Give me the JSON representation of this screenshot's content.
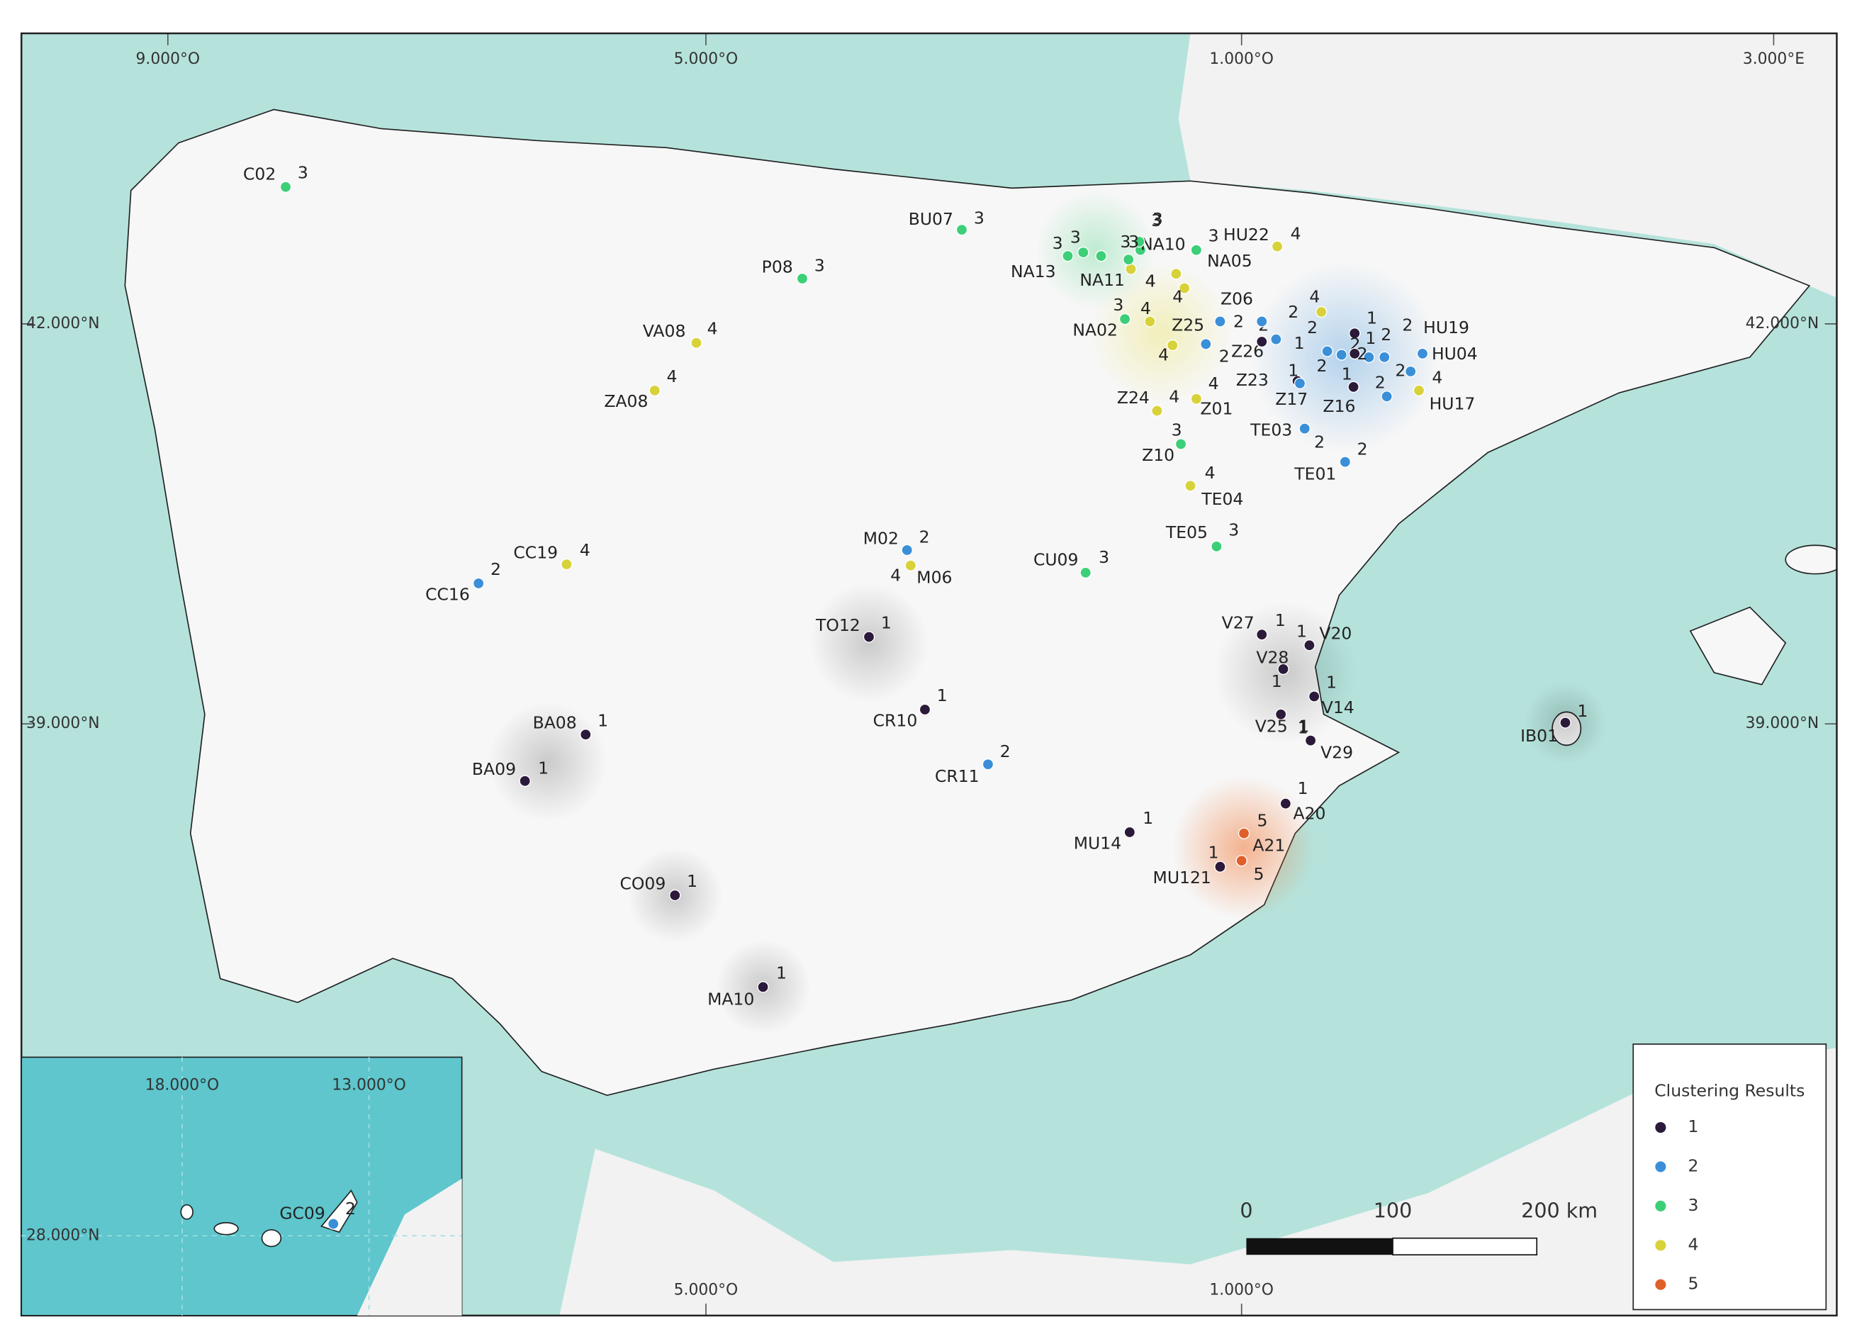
{
  "map": {
    "lon_labels_top": [
      "9.000°O",
      "5.000°O",
      "1.000°O",
      "3.000°E"
    ],
    "lat_labels": [
      "42.000°N",
      "39.000°N"
    ],
    "inset_lon_labels": [
      "18.000°O",
      "13.000°O"
    ],
    "inset_lat_label": "28.000°N",
    "lon_labels_bottom": [
      "5.000°O",
      "1.000°O"
    ],
    "legend": {
      "title": "Clustering Results",
      "items": [
        {
          "label": "1",
          "color": "#2b1a3a"
        },
        {
          "label": "2",
          "color": "#3a8fd8"
        },
        {
          "label": "3",
          "color": "#3ccf78"
        },
        {
          "label": "4",
          "color": "#d8d23a"
        },
        {
          "label": "5",
          "color": "#e0602a"
        }
      ]
    },
    "scale_bar": [
      "0",
      "100",
      "200 km"
    ],
    "points": [
      {
        "label": "C02",
        "cluster": 3
      },
      {
        "label": "BU07",
        "cluster": 3
      },
      {
        "label": "P08",
        "cluster": 3
      },
      {
        "label": "VA08",
        "cluster": 4
      },
      {
        "label": "ZA08",
        "cluster": 4
      },
      {
        "label": "NA13",
        "cluster": 3
      },
      {
        "label": "NA11",
        "cluster": 4
      },
      {
        "label": "NA10",
        "cluster": 3
      },
      {
        "label": "NA05",
        "cluster": 3
      },
      {
        "label": "HU22",
        "cluster": 4
      },
      {
        "label": "NA02",
        "cluster": 3
      },
      {
        "label": "Z06",
        "cluster": 2
      },
      {
        "label": "Z25",
        "cluster": 2
      },
      {
        "label": "Z26",
        "cluster": 2
      },
      {
        "label": "HU19",
        "cluster": 2
      },
      {
        "label": "HU04",
        "cluster": 2
      },
      {
        "label": "Z23",
        "cluster": 1
      },
      {
        "label": "Z17",
        "cluster": 2
      },
      {
        "label": "Z16",
        "cluster": 1
      },
      {
        "label": "HU17",
        "cluster": 4
      },
      {
        "label": "Z24",
        "cluster": 4
      },
      {
        "label": "Z01",
        "cluster": 4
      },
      {
        "label": "TE03",
        "cluster": 2
      },
      {
        "label": "Z10",
        "cluster": 3
      },
      {
        "label": "TE01",
        "cluster": 2
      },
      {
        "label": "TE04",
        "cluster": 4
      },
      {
        "label": "TE05",
        "cluster": 3
      },
      {
        "label": "CU09",
        "cluster": 3
      },
      {
        "label": "M02",
        "cluster": 2
      },
      {
        "label": "M06",
        "cluster": 4
      },
      {
        "label": "CC19",
        "cluster": 4
      },
      {
        "label": "CC16",
        "cluster": 2
      },
      {
        "label": "TO12",
        "cluster": 1
      },
      {
        "label": "V27",
        "cluster": 1
      },
      {
        "label": "V20",
        "cluster": 1
      },
      {
        "label": "V28",
        "cluster": 1
      },
      {
        "label": "V14",
        "cluster": 1
      },
      {
        "label": "V25",
        "cluster": 1
      },
      {
        "label": "V29",
        "cluster": 1
      },
      {
        "label": "CR10",
        "cluster": 1
      },
      {
        "label": "BA08",
        "cluster": 1
      },
      {
        "label": "BA09",
        "cluster": 1
      },
      {
        "label": "CR11",
        "cluster": 2
      },
      {
        "label": "IB01",
        "cluster": 1
      },
      {
        "label": "A20",
        "cluster": 1
      },
      {
        "label": "A21",
        "cluster": 5
      },
      {
        "label": "MU121",
        "cluster": 1
      },
      {
        "label": "MU14",
        "cluster": 1
      },
      {
        "label": "CO09",
        "cluster": 1
      },
      {
        "label": "MA10",
        "cluster": 1
      },
      {
        "label": "GC09",
        "cluster": 2
      },
      {
        "label": null,
        "cluster": 3
      },
      {
        "label": null,
        "cluster": 3
      },
      {
        "label": null,
        "cluster": 3
      },
      {
        "label": null,
        "cluster": 3
      },
      {
        "label": null,
        "cluster": 4
      },
      {
        "label": null,
        "cluster": 4
      },
      {
        "label": null,
        "cluster": 4
      },
      {
        "label": null,
        "cluster": 2
      },
      {
        "label": null,
        "cluster": 2
      },
      {
        "label": null,
        "cluster": 2
      },
      {
        "label": null,
        "cluster": 1
      },
      {
        "label": null,
        "cluster": 4
      },
      {
        "label": null,
        "cluster": 2
      },
      {
        "label": null,
        "cluster": 2
      },
      {
        "label": null,
        "cluster": 1
      },
      {
        "label": null,
        "cluster": 5
      },
      {
        "label": null,
        "cluster": 2
      },
      {
        "label": null,
        "cluster": 4
      },
      {
        "label": null,
        "cluster": 1
      }
    ]
  }
}
